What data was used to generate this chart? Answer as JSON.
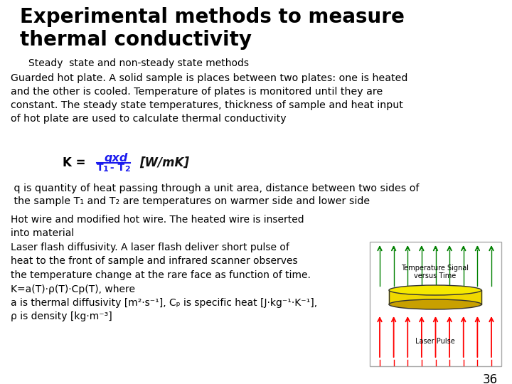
{
  "title_line1": "Experimental methods to measure",
  "title_line2": "thermal conductivity",
  "subtitle": "Steady  state and non-steady state methods",
  "para1": "Guarded hot plate. A solid sample is places between two plates: one is heated\nand the other is cooled. Temperature of plates is monitored until they are\nconstant. The steady state temperatures, thickness of sample and heat input\nof hot plate are used to calculate thermal conductivity",
  "para2_line1": " q is quantity of heat passing through a unit area, distance between two sides of",
  "para2_line2": " the sample T₁ and T₂ are temperatures on warmer side and lower side",
  "para3_line1": "Hot wire and modified hot wire. The heated wire is inserted",
  "para3_line2": "into material",
  "para3_line3": "Laser flash diffusivity. A laser flash deliver short pulse of",
  "para3_line4": "heat to the front of sample and infrared scanner observes",
  "para3_line5": "the temperature change at the rare face as function of time.",
  "para3_line6": "K=a(T)·ρ(T)·Cp(T), where",
  "para3_line7": "a is thermal diffusivity [m²·s⁻¹], Cₚ is specific heat [J·kg⁻¹·K⁻¹],",
  "para3_line8": "ρ is density [kg·m⁻³]",
  "page_num": "36",
  "bg_color": "#ffffff",
  "text_color": "#000000",
  "title_color": "#000000"
}
